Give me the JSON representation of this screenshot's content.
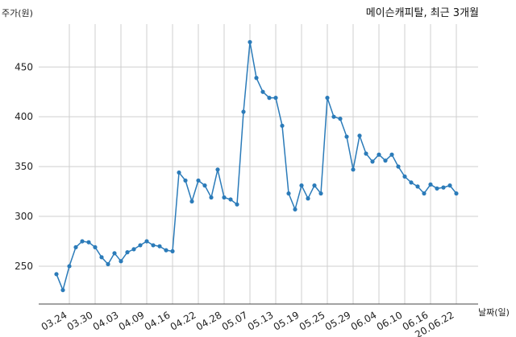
{
  "chart_data": {
    "type": "line",
    "title": "메이슨캐피탈, 최근 3개월",
    "xlabel": "날짜(일)",
    "ylabel": "주가(원)",
    "ylim": [
      212,
      493
    ],
    "yticks": [
      250,
      300,
      350,
      400,
      450
    ],
    "xtick_labels": [
      "03.24",
      "03.30",
      "04.03",
      "04.09",
      "04.16",
      "04.22",
      "04.28",
      "05.07",
      "05.13",
      "05.19",
      "05.25",
      "05.29",
      "06.04",
      "06.10",
      "06.16",
      "20.06.22"
    ],
    "xtick_index": [
      2,
      6,
      10,
      14,
      18,
      22,
      26,
      30,
      34,
      38,
      42,
      46,
      50,
      54,
      58,
      62
    ],
    "grid": true,
    "colors": {
      "line": "#2b7bb9",
      "grid": "#cfcfcf"
    },
    "series": [
      {
        "values": [
          242,
          226,
          250,
          269,
          275,
          274,
          269,
          259,
          252,
          263,
          255,
          264,
          267,
          271,
          275,
          271,
          270,
          266,
          265,
          344,
          336,
          315,
          336,
          331,
          319,
          347,
          319,
          317,
          312,
          405,
          475,
          439,
          425,
          419,
          419,
          391,
          323,
          307,
          331,
          318,
          331,
          323,
          419,
          400,
          398,
          380,
          347,
          381,
          363,
          355,
          362,
          356,
          362,
          350,
          340,
          334,
          330,
          323,
          332,
          328,
          329,
          331,
          323
        ]
      }
    ]
  }
}
